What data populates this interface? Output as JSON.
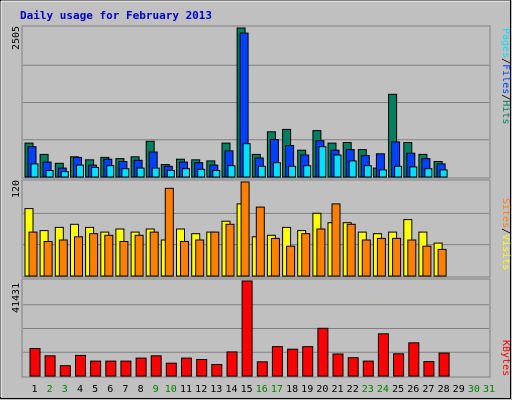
{
  "chart_data": [
    {
      "type": "bar",
      "title": "Daily usage for February 2013",
      "ymax_label": "2505",
      "ymax": 2505,
      "legend": [
        {
          "label": "Pages",
          "color": "#00e0ff"
        },
        {
          "label": "Files",
          "color": "#0040ff"
        },
        {
          "label": "Hits",
          "color": "#008060"
        }
      ],
      "legend_separator": "/",
      "categories": [
        "1",
        "2",
        "3",
        "4",
        "5",
        "6",
        "7",
        "8",
        "9",
        "10",
        "11",
        "12",
        "13",
        "14",
        "15",
        "16",
        "17",
        "18",
        "19",
        "20",
        "21",
        "22",
        "23",
        "24",
        "25",
        "26",
        "27",
        "28",
        "29",
        "30",
        "31"
      ],
      "weekend_days": [
        "2",
        "3",
        "9",
        "10",
        "16",
        "17",
        "23",
        "24",
        "30",
        "31"
      ],
      "series": [
        {
          "name": "Hits",
          "values": [
            570,
            380,
            230,
            340,
            290,
            330,
            310,
            340,
            600,
            210,
            300,
            290,
            270,
            570,
            2505,
            380,
            760,
            800,
            450,
            780,
            570,
            580,
            460,
            150,
            1390,
            580,
            380,
            260,
            0,
            0,
            0
          ]
        },
        {
          "name": "Files",
          "values": [
            510,
            250,
            150,
            330,
            200,
            300,
            260,
            280,
            420,
            180,
            250,
            240,
            200,
            440,
            2420,
            320,
            630,
            530,
            370,
            610,
            450,
            460,
            360,
            390,
            590,
            400,
            310,
            220,
            0,
            0,
            0
          ]
        },
        {
          "name": "Pages",
          "values": [
            220,
            110,
            90,
            200,
            160,
            190,
            140,
            150,
            150,
            110,
            140,
            130,
            110,
            190,
            560,
            180,
            240,
            180,
            190,
            510,
            370,
            270,
            190,
            120,
            180,
            170,
            140,
            120,
            0,
            0,
            0
          ]
        }
      ]
    },
    {
      "type": "bar",
      "ymax_label": "120",
      "ymax": 120,
      "legend": [
        {
          "label": "Sites",
          "color": "#ff8000"
        },
        {
          "label": "Visits",
          "color": "#ffff00"
        }
      ],
      "legend_separator": "/",
      "series": [
        {
          "name": "Visits",
          "values": [
            86,
            58,
            62,
            66,
            62,
            56,
            60,
            56,
            60,
            46,
            60,
            54,
            56,
            70,
            92,
            50,
            52,
            62,
            58,
            80,
            68,
            68,
            56,
            54,
            56,
            72,
            56,
            42,
            0,
            0,
            0
          ]
        },
        {
          "name": "Sites",
          "values": [
            56,
            44,
            46,
            50,
            54,
            52,
            44,
            52,
            56,
            112,
            44,
            46,
            56,
            66,
            120,
            88,
            48,
            38,
            54,
            60,
            92,
            66,
            46,
            48,
            48,
            46,
            38,
            34,
            0,
            0,
            0
          ]
        }
      ]
    },
    {
      "type": "bar",
      "ymax_label": "41431",
      "ymax": 41431,
      "legend": [
        {
          "label": "KBytes",
          "color": "#ff0000"
        }
      ],
      "series": [
        {
          "name": "KBytes",
          "values": [
            12000,
            8800,
            4500,
            9000,
            6500,
            6500,
            6500,
            7800,
            8800,
            5600,
            7800,
            7200,
            5000,
            10500,
            41431,
            6200,
            12800,
            11700,
            12800,
            20800,
            9600,
            8000,
            6500,
            18400,
            9700,
            14500,
            6300,
            10000,
            0,
            0,
            0
          ]
        }
      ]
    }
  ]
}
